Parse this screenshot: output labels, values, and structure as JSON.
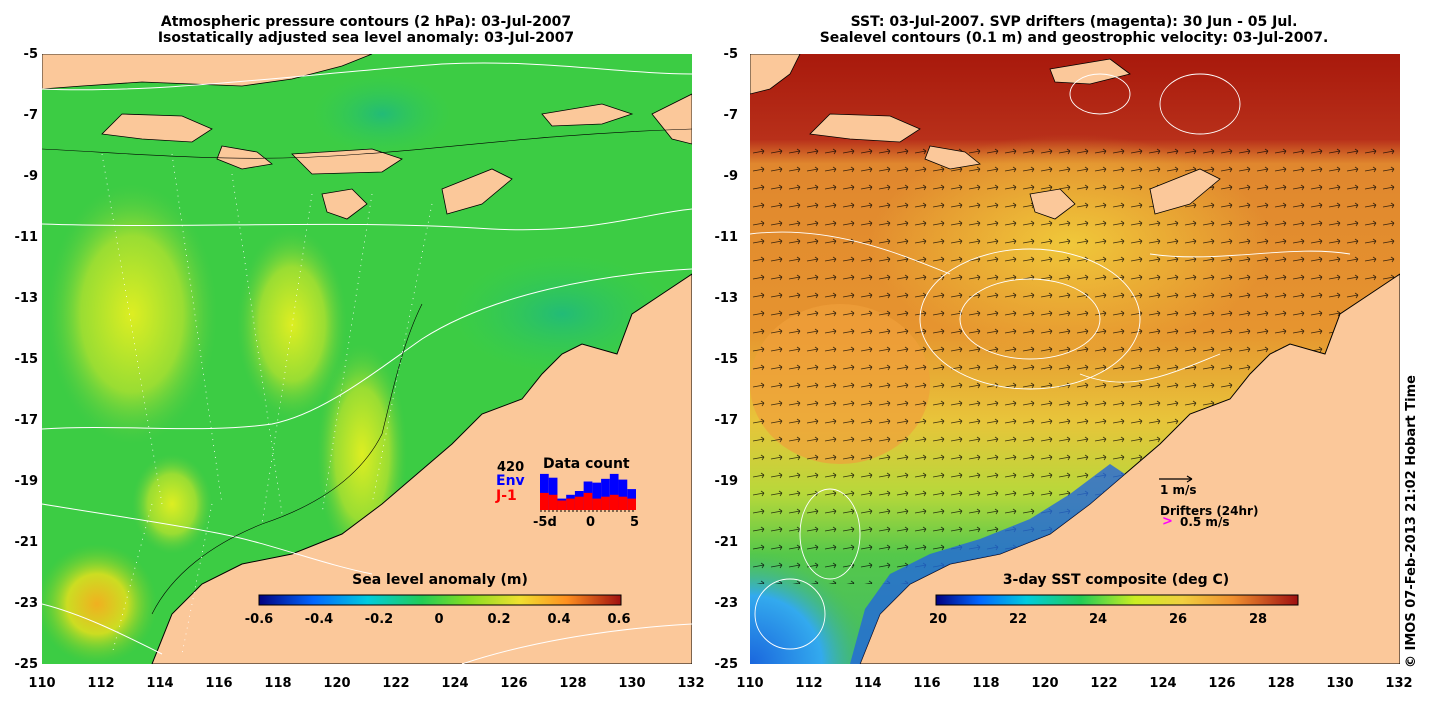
{
  "left_panel": {
    "title_line1": "Atmospheric pressure contours (2 hPa): 03-Jul-2007",
    "title_line2": "Isostatically adjusted sea level anomaly: 03-Jul-2007",
    "colorbar": {
      "label": "Sea level anomaly (m)",
      "ticks": [
        "-0.6",
        "-0.4",
        "-0.2",
        "0",
        "0.2",
        "0.4",
        "0.6"
      ],
      "range": [
        -0.6,
        0.6
      ]
    },
    "data_count": {
      "title": "Data count",
      "max_label": "420",
      "env_label": "Env",
      "j1_label": "J-1",
      "x_ticks": [
        "-5d",
        "0",
        "5"
      ],
      "env_values": [
        0.95,
        0.85,
        0.3,
        0.4,
        0.5,
        0.75,
        0.72,
        0.82,
        0.95,
        0.8,
        0.55
      ],
      "j1_values": [
        0.45,
        0.4,
        0.25,
        0.3,
        0.35,
        0.45,
        0.3,
        0.35,
        0.4,
        0.35,
        0.3
      ],
      "env_color": "#0000ff",
      "j1_color": "#ff0000"
    }
  },
  "right_panel": {
    "title_line1": "SST: 03-Jul-2007. SVP drifters (magenta): 30 Jun - 05 Jul.",
    "title_line2": "Sealevel contours (0.1 m) and geostrophic velocity: 03-Jul-2007.",
    "colorbar": {
      "label": "3-day SST composite (deg C)",
      "ticks": [
        "20",
        "22",
        "24",
        "26",
        "28"
      ],
      "range": [
        20,
        29
      ]
    },
    "velocity_legend": "1 m/s",
    "drifters_label": "Drifters (24hr)",
    "drifters_speed": "0.5 m/s",
    "drifter_color": "#ff00ff"
  },
  "axes": {
    "y_ticks": [
      "-5",
      "-7",
      "-9",
      "-11",
      "-13",
      "-15",
      "-17",
      "-19",
      "-21",
      "-23",
      "-25"
    ],
    "x_ticks": [
      "110",
      "112",
      "114",
      "116",
      "118",
      "120",
      "122",
      "124",
      "126",
      "128",
      "130",
      "132"
    ],
    "lon_range": [
      110,
      132
    ],
    "lat_range": [
      -25,
      -5
    ]
  },
  "colors": {
    "land": "#fbc89a",
    "sea_green": "#33cc33",
    "sst_warm": "#e68a2e",
    "sst_hot": "#a61a0a"
  },
  "copyright": "© IMOS 07-Feb-2013 21:02 Hobart Time"
}
